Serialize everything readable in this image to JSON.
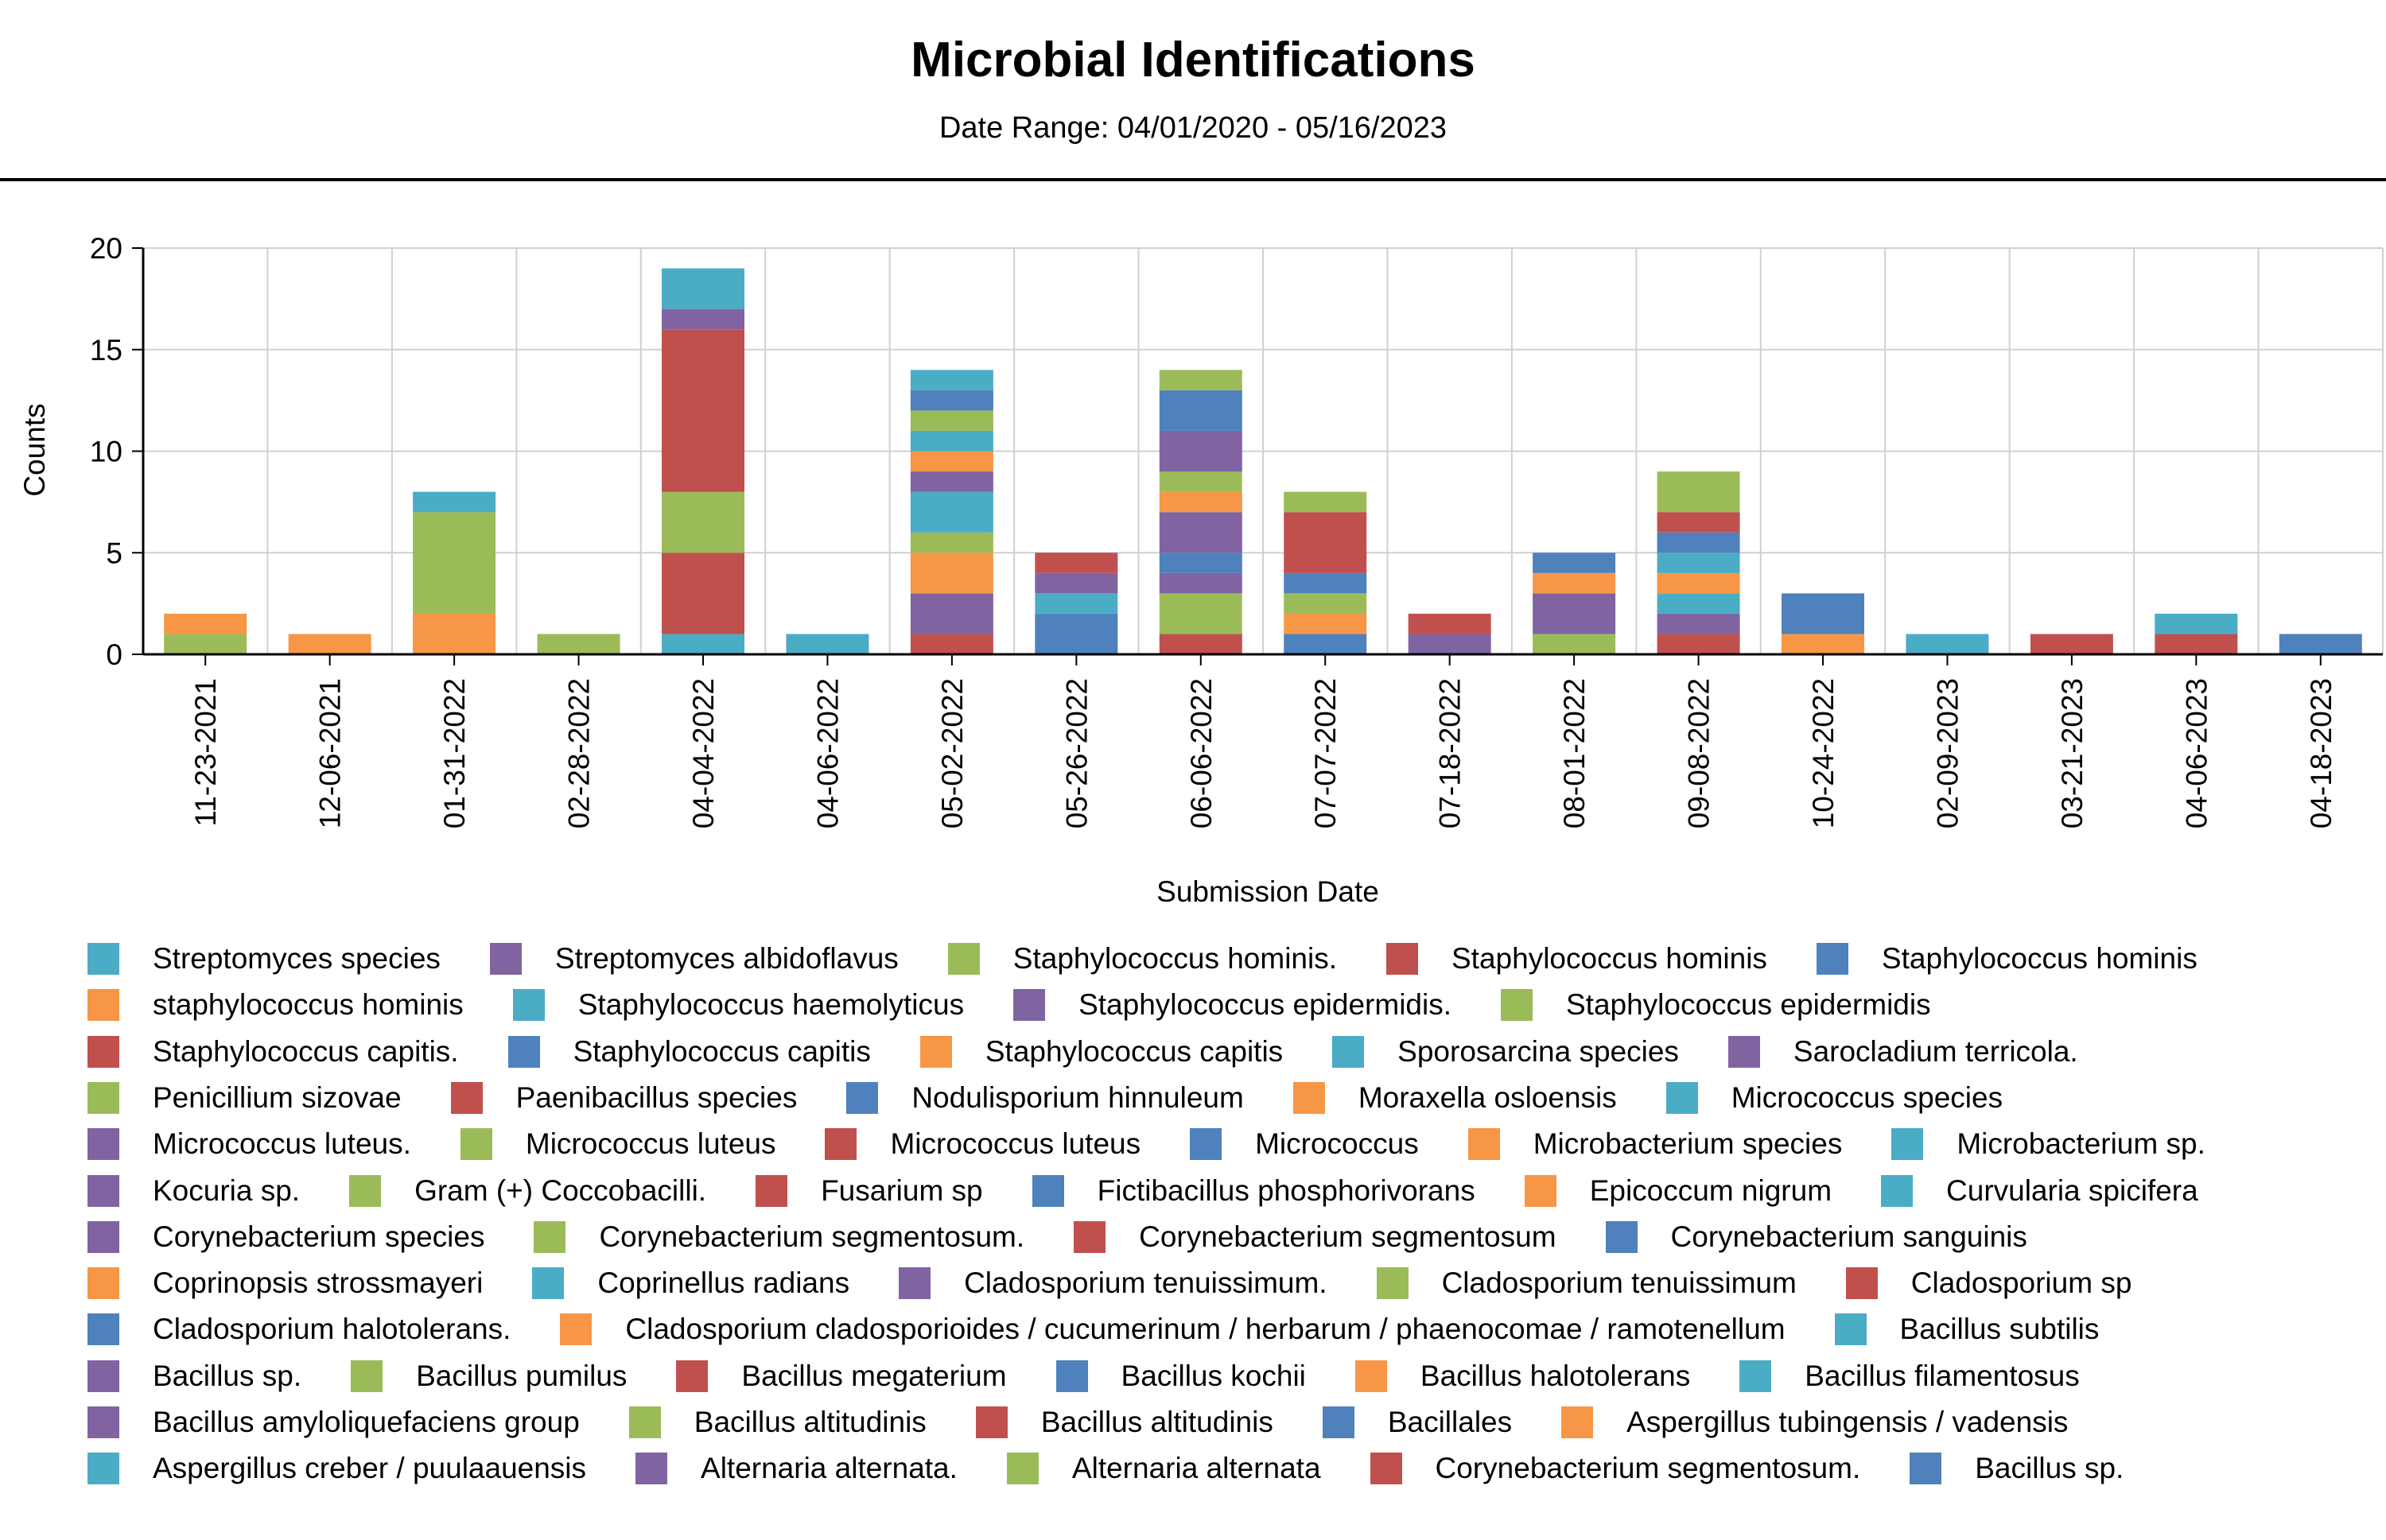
{
  "chart_data": {
    "type": "bar",
    "stacked": true,
    "title": "Microbial Identifications",
    "subtitle": "Date Range: 04/01/2020 - 05/16/2023",
    "xlabel": "Submission Date",
    "ylabel": "Counts",
    "ylim": [
      0,
      20
    ],
    "yticks": [
      0,
      5,
      10,
      15,
      20
    ],
    "grid": true,
    "legend_position": "bottom",
    "categories": [
      "11-23-2021",
      "12-06-2021",
      "01-31-2022",
      "02-28-2022",
      "04-04-2022",
      "04-06-2022",
      "05-02-2022",
      "05-26-2022",
      "06-06-2022",
      "07-07-2022",
      "07-18-2022",
      "08-01-2022",
      "09-08-2022",
      "10-24-2022",
      "02-09-2023",
      "03-21-2023",
      "04-06-2023",
      "04-18-2023"
    ],
    "legend": [
      {
        "name": "Streptomyces species",
        "color": "#4bacc6"
      },
      {
        "name": "Streptomyces albidoflavus",
        "color": "#8064a2"
      },
      {
        "name": "Staphylococcus hominis.",
        "color": "#9bbb59"
      },
      {
        "name": "Staphylococcus hominis",
        "color": "#c0504d"
      },
      {
        "name": "Staphylococcus hominis",
        "color": "#4f81bd"
      },
      {
        "name": "staphylococcus hominis",
        "color": "#f79646"
      },
      {
        "name": "Staphylococcus haemolyticus",
        "color": "#4bacc6"
      },
      {
        "name": "Staphylococcus epidermidis.",
        "color": "#8064a2"
      },
      {
        "name": "Staphylococcus epidermidis",
        "color": "#9bbb59"
      },
      {
        "name": "Staphylococcus capitis.",
        "color": "#c0504d"
      },
      {
        "name": "Staphylococcus capitis",
        "color": "#4f81bd"
      },
      {
        "name": "Staphylococcus capitis",
        "color": "#f79646"
      },
      {
        "name": "Sporosarcina species",
        "color": "#4bacc6"
      },
      {
        "name": "Sarocladium terricola.",
        "color": "#8064a2"
      },
      {
        "name": "Penicillium sizovae",
        "color": "#9bbb59"
      },
      {
        "name": "Paenibacillus species",
        "color": "#c0504d"
      },
      {
        "name": "Nodulisporium hinnuleum",
        "color": "#4f81bd"
      },
      {
        "name": "Moraxella osloensis",
        "color": "#f79646"
      },
      {
        "name": "Micrococcus species",
        "color": "#4bacc6"
      },
      {
        "name": "Micrococcus luteus.",
        "color": "#8064a2"
      },
      {
        "name": "Micrococcus luteus",
        "color": "#9bbb59"
      },
      {
        "name": "Micrococcus luteus",
        "color": "#c0504d"
      },
      {
        "name": "Micrococcus",
        "color": "#4f81bd"
      },
      {
        "name": "Microbacterium species",
        "color": "#f79646"
      },
      {
        "name": "Microbacterium sp.",
        "color": "#4bacc6"
      },
      {
        "name": "Kocuria sp.",
        "color": "#8064a2"
      },
      {
        "name": "Gram (+) Coccobacilli.",
        "color": "#9bbb59"
      },
      {
        "name": "Fusarium sp",
        "color": "#c0504d"
      },
      {
        "name": "Fictibacillus phosphorivorans",
        "color": "#4f81bd"
      },
      {
        "name": "Epicoccum nigrum",
        "color": "#f79646"
      },
      {
        "name": "Curvularia spicifera",
        "color": "#4bacc6"
      },
      {
        "name": "Corynebacterium species",
        "color": "#8064a2"
      },
      {
        "name": "Corynebacterium segmentosum.",
        "color": "#9bbb59"
      },
      {
        "name": "Corynebacterium segmentosum",
        "color": "#c0504d"
      },
      {
        "name": "Corynebacterium sanguinis",
        "color": "#4f81bd"
      },
      {
        "name": "Coprinopsis strossmayeri",
        "color": "#f79646"
      },
      {
        "name": "Coprinellus radians",
        "color": "#4bacc6"
      },
      {
        "name": "Cladosporium tenuissimum.",
        "color": "#8064a2"
      },
      {
        "name": "Cladosporium tenuissimum",
        "color": "#9bbb59"
      },
      {
        "name": "Cladosporium sp",
        "color": "#c0504d"
      },
      {
        "name": "Cladosporium halotolerans.",
        "color": "#4f81bd"
      },
      {
        "name": "Cladosporium cladosporioides / cucumerinum / herbarum / phaenocomae / ramotenellum",
        "color": "#f79646"
      },
      {
        "name": "Bacillus subtilis",
        "color": "#4bacc6"
      },
      {
        "name": "Bacillus sp.",
        "color": "#8064a2"
      },
      {
        "name": "Bacillus pumilus",
        "color": "#9bbb59"
      },
      {
        "name": "Bacillus megaterium",
        "color": "#c0504d"
      },
      {
        "name": "Bacillus kochii",
        "color": "#4f81bd"
      },
      {
        "name": "Bacillus halotolerans",
        "color": "#f79646"
      },
      {
        "name": "Bacillus filamentosus",
        "color": "#4bacc6"
      },
      {
        "name": "Bacillus amyloliquefaciens group",
        "color": "#8064a2"
      },
      {
        "name": "Bacillus altitudinis",
        "color": "#9bbb59"
      },
      {
        "name": "Bacillus altitudinis",
        "color": "#c0504d"
      },
      {
        "name": "Bacillales",
        "color": "#4f81bd"
      },
      {
        "name": "Aspergillus tubingensis / vadensis",
        "color": "#f79646"
      },
      {
        "name": "Aspergillus creber / puulaauensis",
        "color": "#4bacc6"
      },
      {
        "name": "Alternaria alternata.",
        "color": "#8064a2"
      },
      {
        "name": "Alternaria alternata",
        "color": "#9bbb59"
      },
      {
        "name": "Corynebacterium segmentosum.",
        "color": "#c0504d"
      },
      {
        "name": "Bacillus sp.",
        "color": "#4f81bd"
      }
    ],
    "stacks": [
      [
        {
          "color": "#9bbb59",
          "value": 1
        },
        {
          "color": "#f79646",
          "value": 1
        }
      ],
      [
        {
          "color": "#f79646",
          "value": 1
        }
      ],
      [
        {
          "color": "#f79646",
          "value": 2
        },
        {
          "color": "#9bbb59",
          "value": 5
        },
        {
          "color": "#4bacc6",
          "value": 1
        }
      ],
      [
        {
          "color": "#9bbb59",
          "value": 1
        }
      ],
      [
        {
          "color": "#4bacc6",
          "value": 1
        },
        {
          "color": "#c0504d",
          "value": 4
        },
        {
          "color": "#9bbb59",
          "value": 3
        },
        {
          "color": "#c0504d",
          "value": 8
        },
        {
          "color": "#8064a2",
          "value": 1
        },
        {
          "color": "#4bacc6",
          "value": 2
        }
      ],
      [
        {
          "color": "#4bacc6",
          "value": 1
        }
      ],
      [
        {
          "color": "#c0504d",
          "value": 1
        },
        {
          "color": "#8064a2",
          "value": 2
        },
        {
          "color": "#f79646",
          "value": 2
        },
        {
          "color": "#9bbb59",
          "value": 1
        },
        {
          "color": "#4bacc6",
          "value": 2
        },
        {
          "color": "#8064a2",
          "value": 1
        },
        {
          "color": "#f79646",
          "value": 1
        },
        {
          "color": "#4bacc6",
          "value": 1
        },
        {
          "color": "#9bbb59",
          "value": 1
        },
        {
          "color": "#4f81bd",
          "value": 1
        },
        {
          "color": "#4bacc6",
          "value": 1
        }
      ],
      [
        {
          "color": "#4f81bd",
          "value": 2
        },
        {
          "color": "#4bacc6",
          "value": 1
        },
        {
          "color": "#8064a2",
          "value": 1
        },
        {
          "color": "#c0504d",
          "value": 1
        }
      ],
      [
        {
          "color": "#c0504d",
          "value": 1
        },
        {
          "color": "#9bbb59",
          "value": 2
        },
        {
          "color": "#8064a2",
          "value": 1
        },
        {
          "color": "#4f81bd",
          "value": 1
        },
        {
          "color": "#8064a2",
          "value": 2
        },
        {
          "color": "#f79646",
          "value": 1
        },
        {
          "color": "#9bbb59",
          "value": 1
        },
        {
          "color": "#8064a2",
          "value": 2
        },
        {
          "color": "#4f81bd",
          "value": 2
        },
        {
          "color": "#9bbb59",
          "value": 1
        }
      ],
      [
        {
          "color": "#4f81bd",
          "value": 1
        },
        {
          "color": "#f79646",
          "value": 1
        },
        {
          "color": "#9bbb59",
          "value": 1
        },
        {
          "color": "#4f81bd",
          "value": 1
        },
        {
          "color": "#c0504d",
          "value": 3
        },
        {
          "color": "#9bbb59",
          "value": 1
        }
      ],
      [
        {
          "color": "#8064a2",
          "value": 1
        },
        {
          "color": "#c0504d",
          "value": 1
        }
      ],
      [
        {
          "color": "#9bbb59",
          "value": 1
        },
        {
          "color": "#8064a2",
          "value": 2
        },
        {
          "color": "#f79646",
          "value": 1
        },
        {
          "color": "#4f81bd",
          "value": 1
        }
      ],
      [
        {
          "color": "#c0504d",
          "value": 1
        },
        {
          "color": "#8064a2",
          "value": 1
        },
        {
          "color": "#4bacc6",
          "value": 1
        },
        {
          "color": "#f79646",
          "value": 1
        },
        {
          "color": "#4bacc6",
          "value": 1
        },
        {
          "color": "#4f81bd",
          "value": 1
        },
        {
          "color": "#c0504d",
          "value": 1
        },
        {
          "color": "#9bbb59",
          "value": 2
        }
      ],
      [
        {
          "color": "#f79646",
          "value": 1
        },
        {
          "color": "#4f81bd",
          "value": 2
        }
      ],
      [
        {
          "color": "#4bacc6",
          "value": 1
        }
      ],
      [
        {
          "color": "#c0504d",
          "value": 1
        }
      ],
      [
        {
          "color": "#c0504d",
          "value": 1
        },
        {
          "color": "#4bacc6",
          "value": 1
        }
      ],
      [
        {
          "color": "#4f81bd",
          "value": 1
        }
      ]
    ]
  }
}
